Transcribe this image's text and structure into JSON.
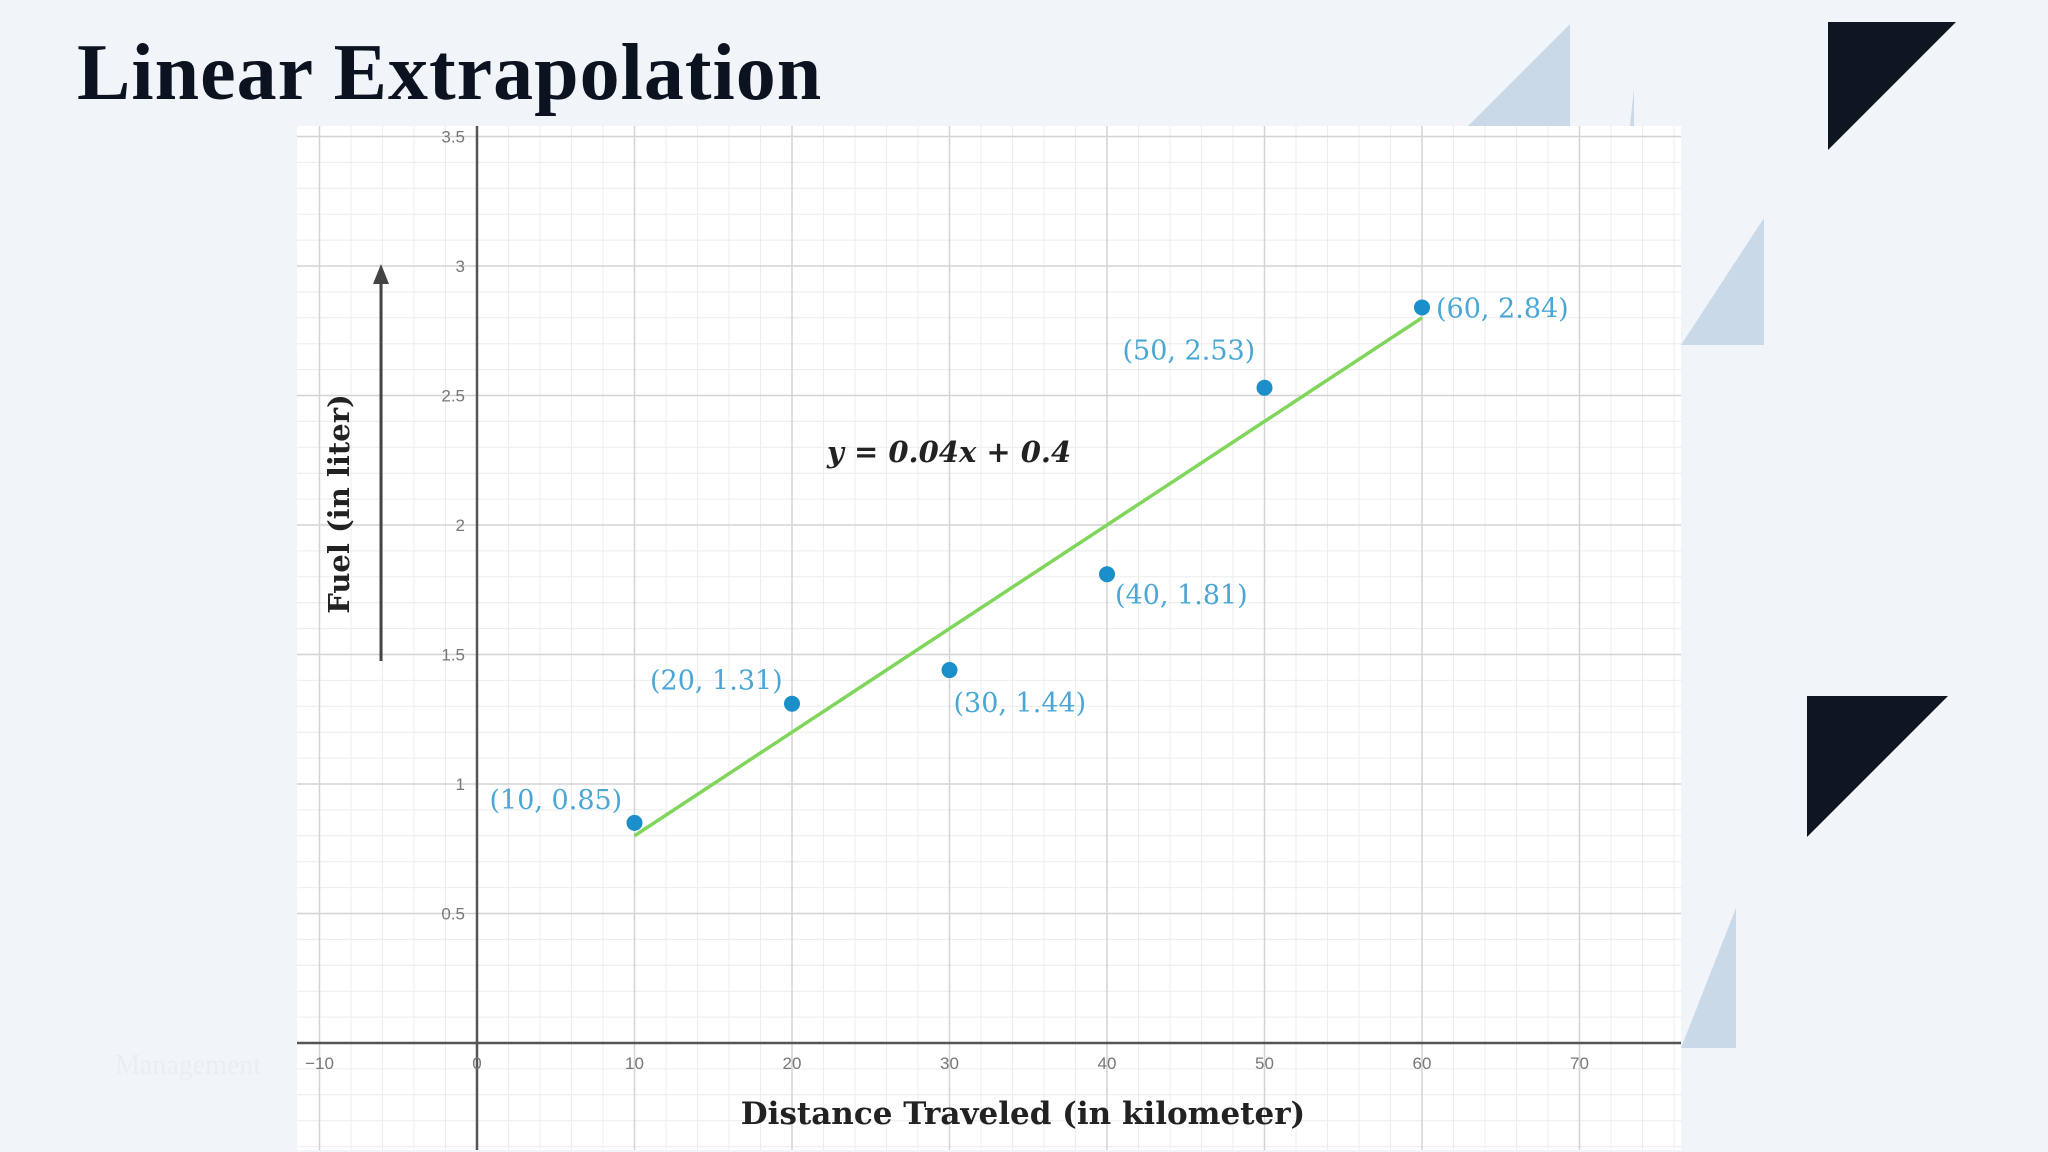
{
  "slide": {
    "title": "Linear Extrapolation",
    "footer": "Management"
  },
  "colors": {
    "dark_triangle": "#0e1621",
    "light_triangle": "#c9d9e7",
    "point": "#1a8fc9",
    "label": "#4aa6d4",
    "fit_line": "#7fd65a"
  },
  "chart_data": {
    "type": "scatter",
    "title": "",
    "xlabel": "Distance Traveled (in kilometer)",
    "ylabel": "Fuel (in liter)",
    "xlim": [
      -10,
      70
    ],
    "ylim": [
      0,
      3.5
    ],
    "x_ticks": [
      {
        "value": -10,
        "label": "−10"
      },
      {
        "value": 0,
        "label": "0"
      },
      {
        "value": 10,
        "label": "10"
      },
      {
        "value": 20,
        "label": "20"
      },
      {
        "value": 30,
        "label": "30"
      },
      {
        "value": 40,
        "label": "40"
      },
      {
        "value": 50,
        "label": "50"
      },
      {
        "value": 60,
        "label": "60"
      },
      {
        "value": 70,
        "label": "70"
      }
    ],
    "y_ticks": [
      {
        "value": 0.5,
        "label": "0.5"
      },
      {
        "value": 1,
        "label": "1"
      },
      {
        "value": 1.5,
        "label": "1.5"
      },
      {
        "value": 2,
        "label": "2"
      },
      {
        "value": 2.5,
        "label": "2.5"
      },
      {
        "value": 3,
        "label": "3"
      },
      {
        "value": 3.5,
        "label": "3.5"
      }
    ],
    "grid": true,
    "points": [
      {
        "x": 10,
        "y": 0.85,
        "label": "(10, 0.85)"
      },
      {
        "x": 20,
        "y": 1.31,
        "label": "(20, 1.31)"
      },
      {
        "x": 30,
        "y": 1.44,
        "label": "(30, 1.44)"
      },
      {
        "x": 40,
        "y": 1.81,
        "label": "(40, 1.81)"
      },
      {
        "x": 50,
        "y": 2.53,
        "label": "(50, 2.53)"
      },
      {
        "x": 60,
        "y": 2.84,
        "label": "(60, 2.84)"
      }
    ],
    "fit_line": {
      "equation": "y = 0.04x + 0.4",
      "slope": 0.04,
      "intercept": 0.4,
      "x_range": [
        10,
        60
      ]
    }
  }
}
